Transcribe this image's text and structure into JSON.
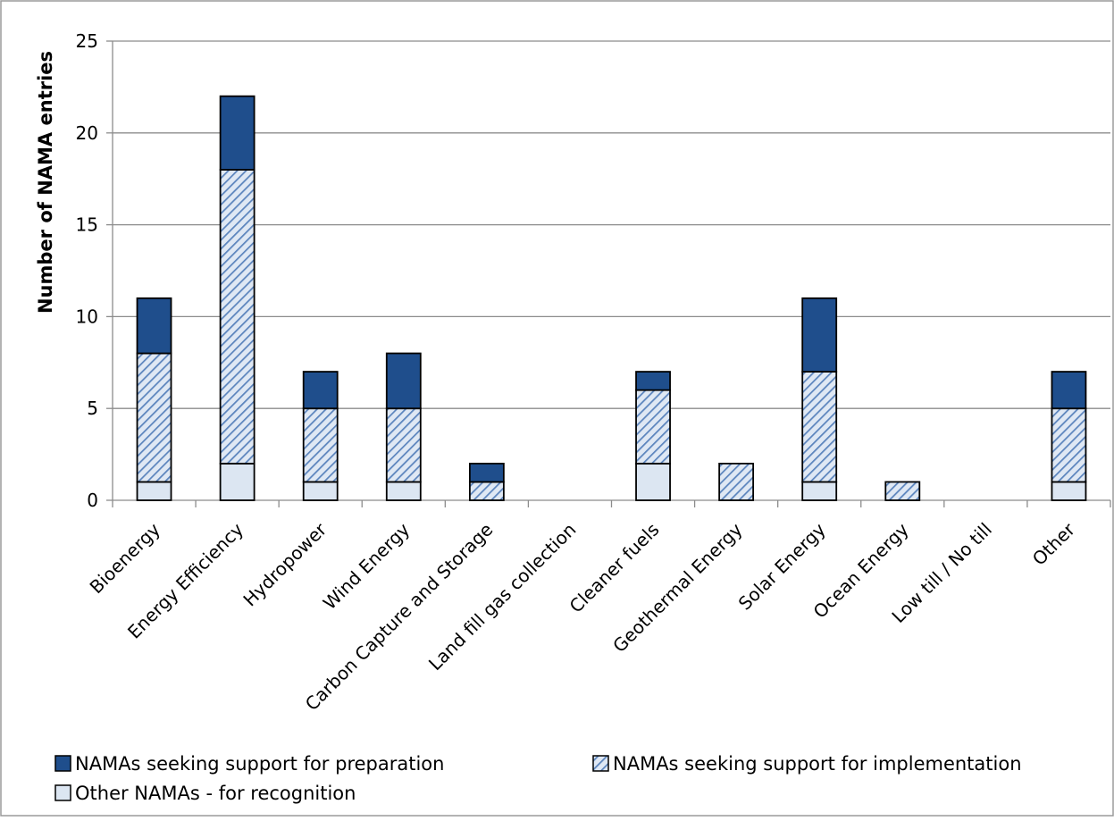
{
  "chart_data": {
    "type": "bar",
    "stacked": true,
    "title": "",
    "xlabel": "",
    "ylabel": "Number of NAMA entries",
    "ylim": [
      0,
      25
    ],
    "yticks": [
      0,
      5,
      10,
      15,
      20,
      25
    ],
    "grid": true,
    "legend_position": "bottom",
    "categories": [
      "Bioenergy",
      "Energy Efficiency",
      "Hydropower",
      "Wind Energy",
      "Carbon Capture and Storage",
      "Land fill gas collection",
      "Cleaner fuels",
      "Geothermal Energy",
      "Solar Energy",
      "Ocean Energy",
      "Low till / No till",
      "Other"
    ],
    "series": [
      {
        "name": "Other NAMAs - for recognition",
        "color": "#dce6f2",
        "pattern": "solid",
        "values": [
          1,
          2,
          1,
          1,
          0,
          0,
          2,
          0,
          1,
          0,
          0,
          1
        ]
      },
      {
        "name": "NAMAs seeking support for implementation",
        "color": "#9cb8dc",
        "pattern": "hatch",
        "values": [
          7,
          16,
          4,
          4,
          1,
          0,
          4,
          2,
          6,
          1,
          0,
          4
        ]
      },
      {
        "name": "NAMAs seeking support for preparation",
        "color": "#1f4e8c",
        "pattern": "solid",
        "values": [
          3,
          4,
          2,
          3,
          1,
          0,
          1,
          0,
          4,
          0,
          0,
          2
        ]
      }
    ],
    "legend_order": [
      2,
      1,
      0
    ]
  }
}
